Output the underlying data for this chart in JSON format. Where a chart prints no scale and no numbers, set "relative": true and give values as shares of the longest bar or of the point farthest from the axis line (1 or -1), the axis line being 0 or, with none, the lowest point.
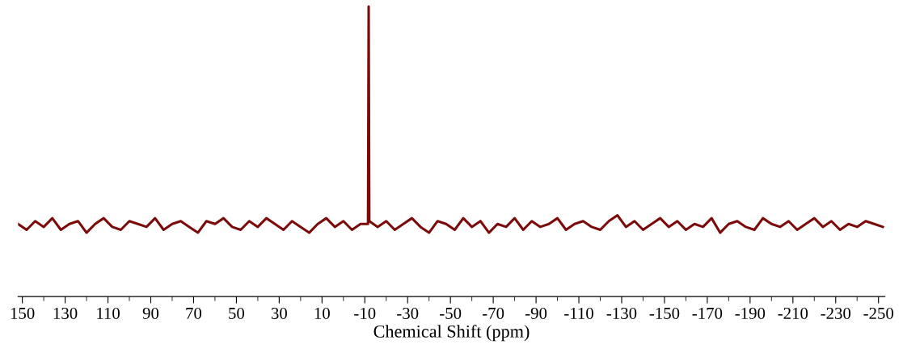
{
  "chart_data": {
    "type": "line",
    "relative": true,
    "xlabel": "Chemical Shift (ppm)",
    "xlim": [
      152,
      -253
    ],
    "xticks": [
      150,
      130,
      110,
      90,
      70,
      50,
      30,
      10,
      -10,
      -30,
      -50,
      -70,
      -90,
      -110,
      -130,
      -150,
      -170,
      -190,
      -210,
      -230,
      -250
    ],
    "tick_labels": "x",
    "grid": false,
    "legend": false,
    "x": [
      152,
      148,
      144,
      140,
      136,
      132,
      128,
      124,
      120,
      116,
      112,
      108,
      104,
      100,
      96,
      92,
      88,
      84,
      80,
      76,
      72,
      68,
      64,
      60,
      56,
      52,
      48,
      44,
      40,
      36,
      32,
      28,
      24,
      20,
      16,
      12,
      8,
      4,
      0,
      -4,
      -8,
      -11.5,
      -11.8,
      -12.1,
      -16,
      -20,
      -24,
      -28,
      -32,
      -36,
      -40,
      -44,
      -48,
      -52,
      -56,
      -60,
      -64,
      -68,
      -72,
      -76,
      -80,
      -84,
      -88,
      -92,
      -96,
      -100,
      -104,
      -108,
      -112,
      -116,
      -120,
      -124,
      -128,
      -132,
      -136,
      -140,
      -144,
      -148,
      -152,
      -156,
      -160,
      -164,
      -168,
      -172,
      -176,
      -180,
      -184,
      -188,
      -192,
      -196,
      -200,
      -204,
      -208,
      -212,
      -216,
      -220,
      -224,
      -228,
      -232,
      -236,
      -240,
      -244,
      -248,
      -252
    ],
    "series": [
      {
        "color": "#7b0a0a",
        "values": [
          0.25,
          0.23,
          0.26,
          0.24,
          0.27,
          0.23,
          0.25,
          0.26,
          0.22,
          0.25,
          0.27,
          0.24,
          0.23,
          0.26,
          0.25,
          0.24,
          0.27,
          0.23,
          0.25,
          0.26,
          0.24,
          0.22,
          0.26,
          0.25,
          0.27,
          0.24,
          0.23,
          0.26,
          0.24,
          0.27,
          0.25,
          0.23,
          0.26,
          0.24,
          0.22,
          0.25,
          0.27,
          0.24,
          0.26,
          0.23,
          0.25,
          0.25,
          1,
          0.26,
          0.24,
          0.26,
          0.23,
          0.25,
          0.27,
          0.24,
          0.22,
          0.26,
          0.25,
          0.23,
          0.27,
          0.24,
          0.26,
          0.22,
          0.25,
          0.24,
          0.27,
          0.23,
          0.26,
          0.24,
          0.25,
          0.27,
          0.23,
          0.25,
          0.26,
          0.24,
          0.23,
          0.26,
          0.28,
          0.24,
          0.26,
          0.23,
          0.25,
          0.27,
          0.24,
          0.26,
          0.23,
          0.25,
          0.24,
          0.27,
          0.22,
          0.25,
          0.26,
          0.24,
          0.23,
          0.27,
          0.25,
          0.24,
          0.26,
          0.23,
          0.25,
          0.27,
          0.24,
          0.26,
          0.23,
          0.25,
          0.24,
          0.26,
          0.25,
          0.24
        ]
      }
    ]
  }
}
